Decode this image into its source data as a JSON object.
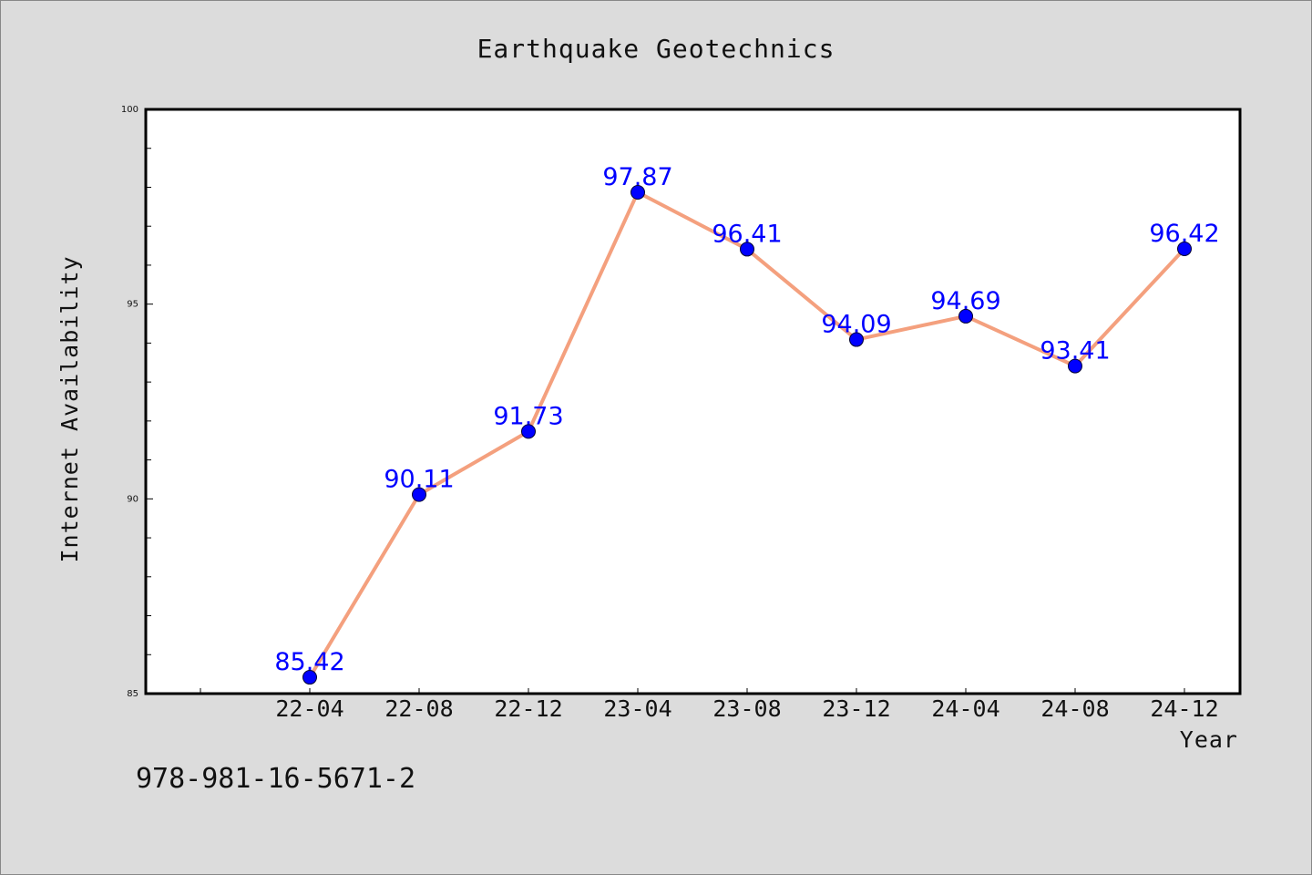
{
  "chart_data": {
    "type": "line",
    "title": "Earthquake Geotechnics",
    "xlabel": "Year",
    "ylabel": "Internet Availability",
    "categories": [
      "22-04",
      "22-08",
      "22-12",
      "23-04",
      "23-08",
      "23-12",
      "24-04",
      "24-08",
      "24-12"
    ],
    "series": [
      {
        "values": [
          85.42,
          90.11,
          91.73,
          97.87,
          96.41,
          94.09,
          94.69,
          93.41,
          96.42
        ]
      }
    ],
    "data_labels": [
      "85.42",
      "90.11",
      "91.73",
      "97.87",
      "96.41",
      "94.09",
      "94.69",
      "93.41",
      "96.42"
    ],
    "ylim": [
      85,
      100
    ],
    "yticks": [
      "85",
      "90",
      "95",
      "100"
    ],
    "ytick_values": [
      85,
      90,
      95,
      100
    ],
    "grid": false,
    "colors": {
      "line": "#f4a07e",
      "marker": "#0000ff",
      "label": "#0000ff",
      "background": "#dcdcdc",
      "plot_area": "#ffffff"
    }
  },
  "footer": {
    "isbn": "978-981-16-5671-2"
  }
}
